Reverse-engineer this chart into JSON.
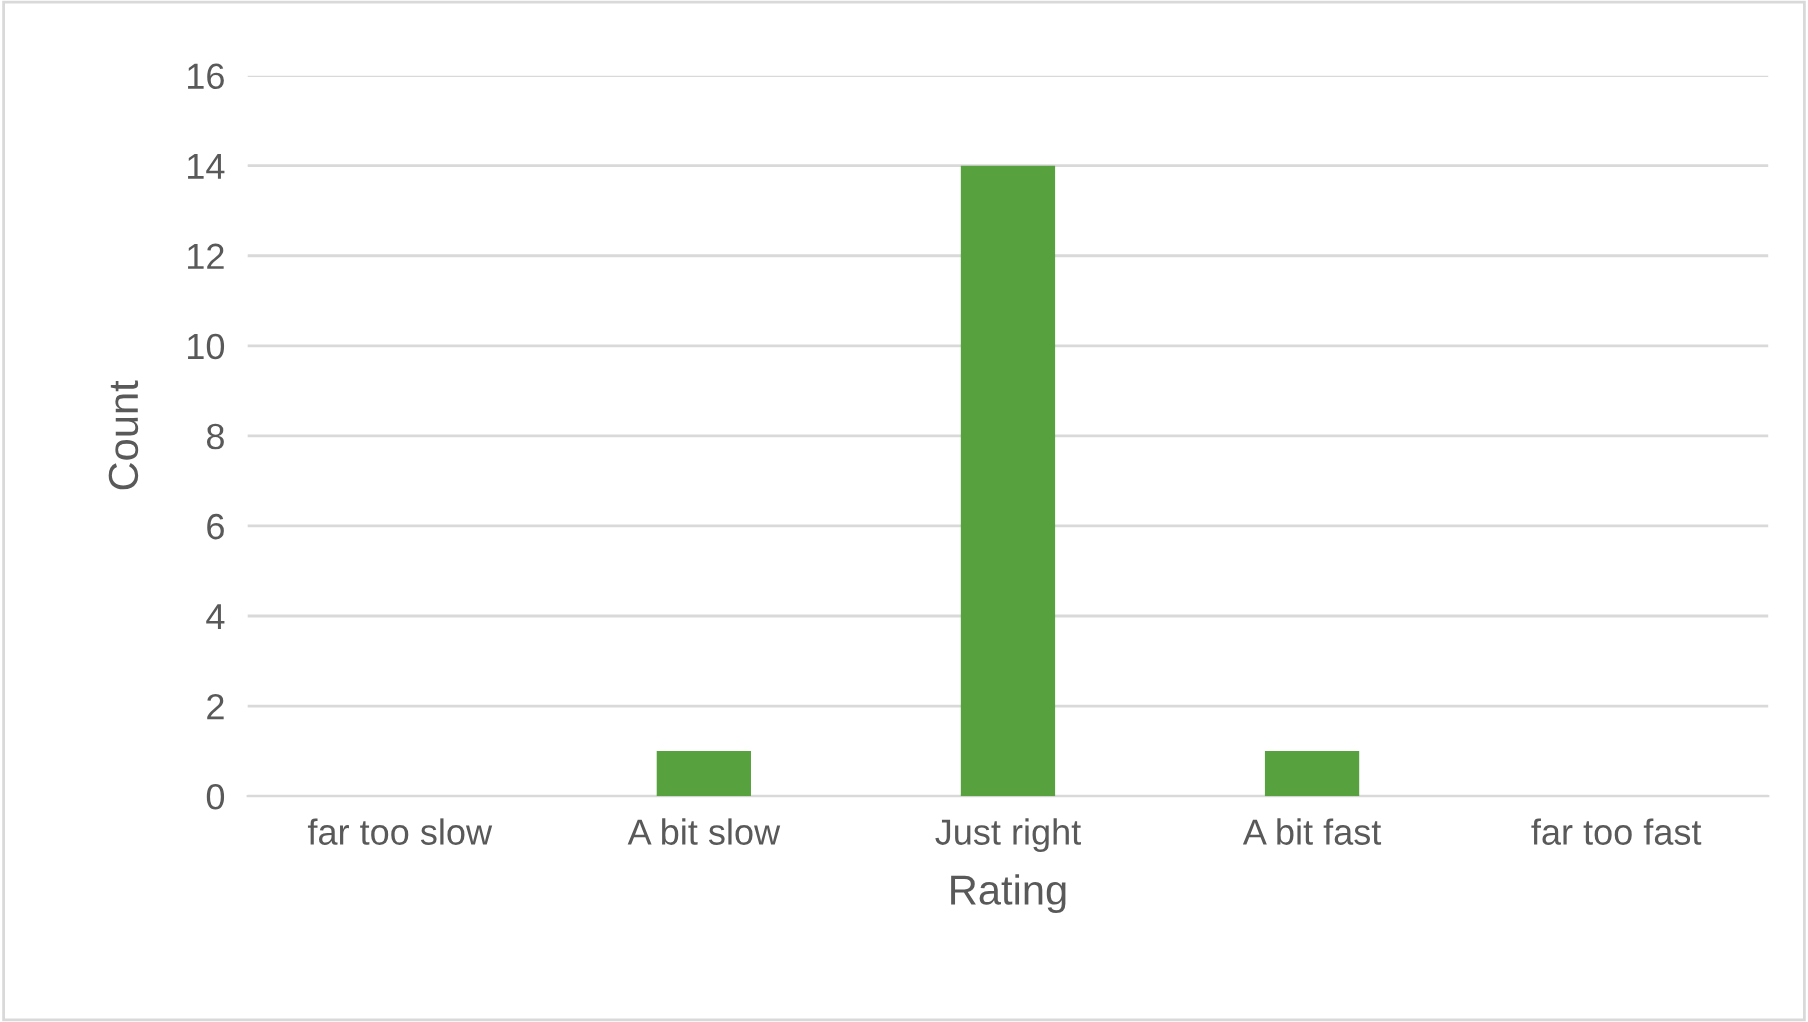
{
  "chart_data": {
    "type": "bar",
    "xlabel": "Rating",
    "ylabel": "Count",
    "categories": [
      "far too slow",
      "A bit slow",
      "Just right",
      "A bit fast",
      "far too fast"
    ],
    "values": [
      0,
      1,
      14,
      1,
      0
    ],
    "color": "#58a13f",
    "ylim": [
      0,
      16
    ],
    "yticks": [
      0,
      2,
      4,
      6,
      8,
      10,
      12,
      14,
      16
    ],
    "grid": "y",
    "legend": false
  }
}
